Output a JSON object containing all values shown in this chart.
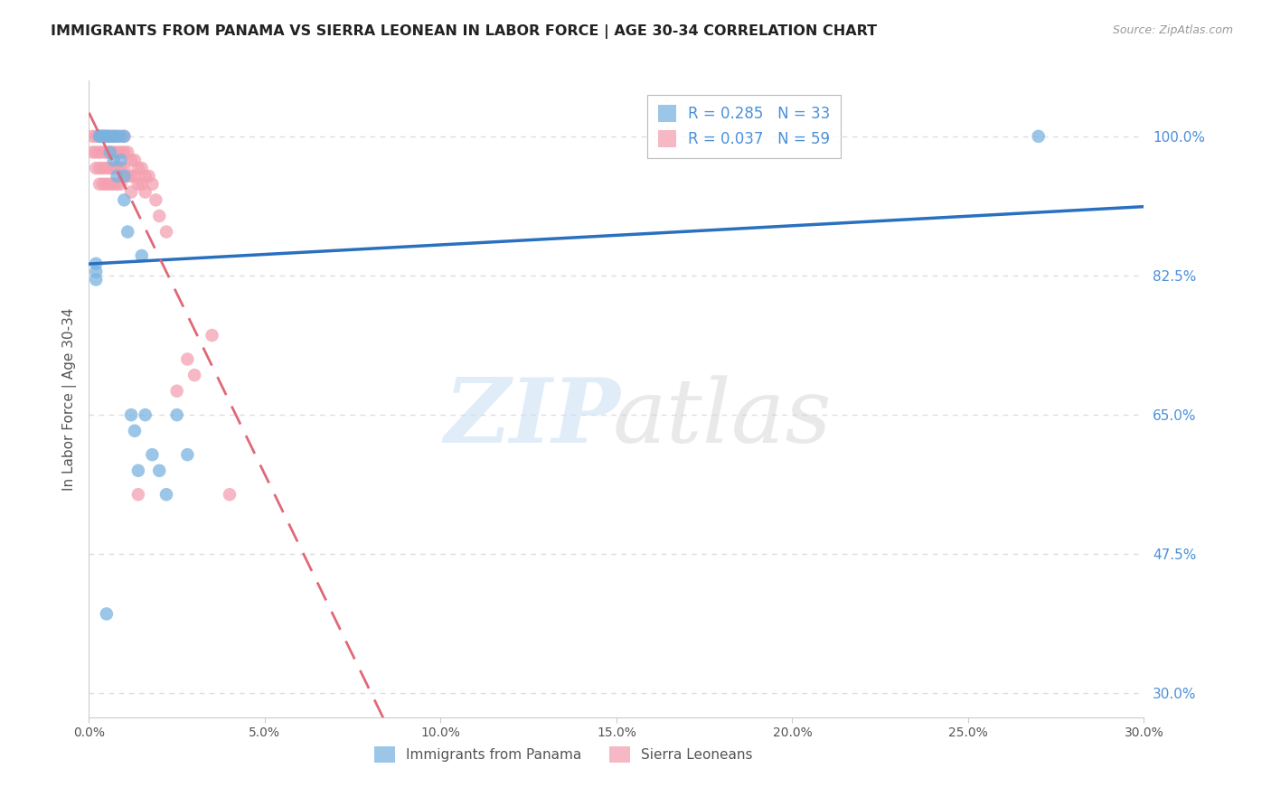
{
  "title": "IMMIGRANTS FROM PANAMA VS SIERRA LEONEAN IN LABOR FORCE | AGE 30-34 CORRELATION CHART",
  "source": "Source: ZipAtlas.com",
  "ylabel": "In Labor Force | Age 30-34",
  "x_ticks": [
    "0.0%",
    "5.0%",
    "10.0%",
    "15.0%",
    "20.0%",
    "25.0%",
    "30.0%"
  ],
  "x_tick_vals": [
    0.0,
    0.05,
    0.1,
    0.15,
    0.2,
    0.25,
    0.3
  ],
  "y_ticks_labels": [
    "100.0%",
    "82.5%",
    "65.0%",
    "47.5%",
    "30.0%"
  ],
  "y_tick_vals": [
    1.0,
    0.825,
    0.65,
    0.475,
    0.3
  ],
  "xlim": [
    0.0,
    0.3
  ],
  "ylim": [
    0.27,
    1.07
  ],
  "panama_color": "#7ab3e0",
  "sierra_color": "#f4a0b0",
  "panama_line_color": "#2970bf",
  "sierra_line_color": "#e06878",
  "panama_R": 0.285,
  "panama_N": 33,
  "sierra_R": 0.037,
  "sierra_N": 59,
  "legend_label_panama": "Immigrants from Panama",
  "legend_label_sierra": "Sierra Leoneans",
  "background_color": "#ffffff",
  "grid_color": "#dddddd",
  "tick_color": "#4a90d9",
  "panama_scatter_x": [
    0.002,
    0.002,
    0.002,
    0.003,
    0.003,
    0.004,
    0.004,
    0.005,
    0.005,
    0.006,
    0.006,
    0.007,
    0.007,
    0.008,
    0.008,
    0.009,
    0.009,
    0.01,
    0.01,
    0.01,
    0.011,
    0.012,
    0.013,
    0.014,
    0.015,
    0.016,
    0.018,
    0.02,
    0.022,
    0.025,
    0.028,
    0.27,
    0.005
  ],
  "panama_scatter_y": [
    0.82,
    0.83,
    0.84,
    1.0,
    1.0,
    1.0,
    1.0,
    1.0,
    1.0,
    1.0,
    0.98,
    1.0,
    0.97,
    1.0,
    0.95,
    1.0,
    0.97,
    0.92,
    1.0,
    0.95,
    0.88,
    0.65,
    0.63,
    0.58,
    0.85,
    0.65,
    0.6,
    0.58,
    0.55,
    0.65,
    0.6,
    1.0,
    0.4
  ],
  "sierra_scatter_x": [
    0.001,
    0.001,
    0.002,
    0.002,
    0.002,
    0.003,
    0.003,
    0.003,
    0.003,
    0.004,
    0.004,
    0.004,
    0.004,
    0.005,
    0.005,
    0.005,
    0.005,
    0.006,
    0.006,
    0.006,
    0.006,
    0.007,
    0.007,
    0.007,
    0.007,
    0.008,
    0.008,
    0.008,
    0.008,
    0.009,
    0.009,
    0.009,
    0.01,
    0.01,
    0.01,
    0.011,
    0.011,
    0.012,
    0.012,
    0.012,
    0.013,
    0.013,
    0.014,
    0.014,
    0.015,
    0.015,
    0.016,
    0.016,
    0.017,
    0.018,
    0.019,
    0.02,
    0.022,
    0.025,
    0.028,
    0.03,
    0.035,
    0.04,
    0.014
  ],
  "sierra_scatter_y": [
    1.0,
    0.98,
    1.0,
    0.98,
    0.96,
    1.0,
    0.98,
    0.96,
    0.94,
    1.0,
    0.98,
    0.96,
    0.94,
    1.0,
    0.98,
    0.96,
    0.94,
    1.0,
    0.98,
    0.96,
    0.94,
    1.0,
    0.98,
    0.96,
    0.94,
    1.0,
    0.98,
    0.96,
    0.94,
    0.98,
    0.96,
    0.94,
    1.0,
    0.98,
    0.96,
    0.98,
    0.95,
    0.97,
    0.95,
    0.93,
    0.97,
    0.95,
    0.96,
    0.94,
    0.96,
    0.94,
    0.95,
    0.93,
    0.95,
    0.94,
    0.92,
    0.9,
    0.88,
    0.68,
    0.72,
    0.7,
    0.75,
    0.55,
    0.55
  ]
}
